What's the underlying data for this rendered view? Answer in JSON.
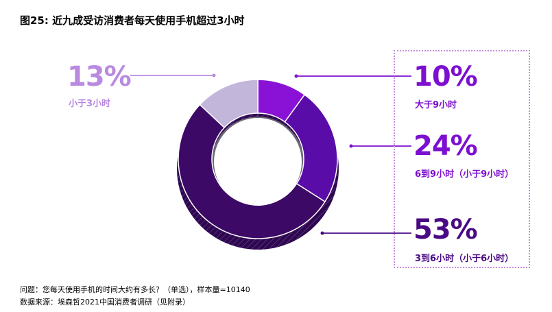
{
  "title": "图25: 近九成受访消费者每天使用手机超过3小时",
  "chart_data": {
    "type": "pie",
    "categories": [
      "10%",
      "24%",
      "53%",
      "13%"
    ],
    "values": [
      10,
      24,
      53,
      13
    ],
    "value_labels": [
      "10%",
      "24%",
      "53%",
      "13%"
    ],
    "labels": [
      "大于9小时",
      "6到9小时（小于9小时）",
      "3到6小时（小于6小时）",
      "小于3小时"
    ],
    "colors": [
      "#8a12d6",
      "#5a0ca8",
      "#3c0a66",
      "#c2b6da"
    ],
    "label_colors": [
      "#7d0fd0",
      "#7d0fd0",
      "#4a0a84",
      "#b98ae0"
    ],
    "donut": true
  },
  "footer": {
    "question": "问题：您每天使用手机的时间大约有多长？（单选），样本量=10140",
    "source": "数据来源：埃森哲2021中国消费者调研（见附录）"
  }
}
